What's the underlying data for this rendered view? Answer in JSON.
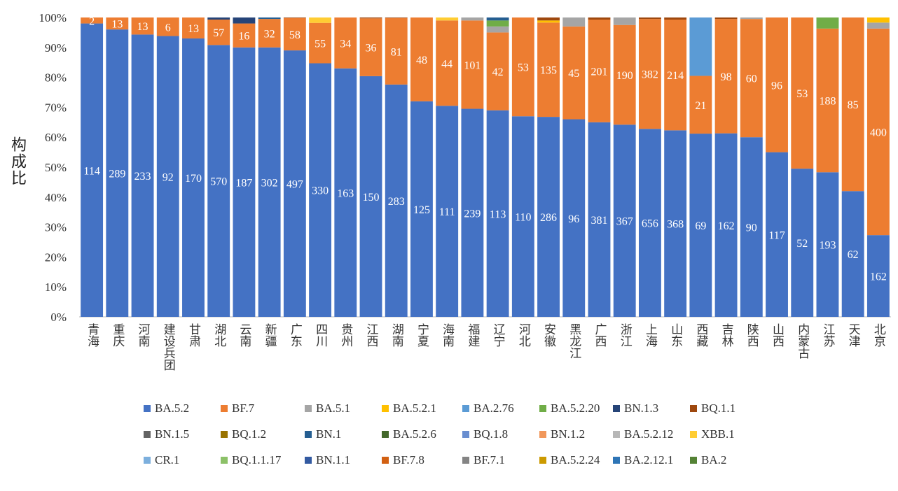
{
  "chart_data": {
    "type": "bar",
    "stacked": true,
    "normalized": true,
    "title": "",
    "xlabel": "",
    "ylabel": "构成比",
    "ylim": [
      0,
      100
    ],
    "yticks": [
      "0%",
      "10%",
      "20%",
      "30%",
      "40%",
      "50%",
      "60%",
      "70%",
      "80%",
      "90%",
      "100%"
    ],
    "grid": false,
    "legend_position": "bottom",
    "categories": [
      "青海",
      "重庆",
      "河南",
      "建设兵团",
      "甘肃",
      "湖北",
      "云南",
      "新疆",
      "广东",
      "四川",
      "贵州",
      "江西",
      "湖南",
      "宁夏",
      "海南",
      "福建",
      "辽宁",
      "河北",
      "安徽",
      "黑龙江",
      "广西",
      "浙江",
      "上海",
      "山东",
      "西藏",
      "吉林",
      "陕西",
      "山西",
      "内蒙古",
      "江苏",
      "天津",
      "北京"
    ],
    "legend": [
      {
        "name": "BA.5.2",
        "color": "#4472c4"
      },
      {
        "name": "BF.7",
        "color": "#ed7d31"
      },
      {
        "name": "BA.5.1",
        "color": "#a5a5a5"
      },
      {
        "name": "BA.5.2.1",
        "color": "#ffc000"
      },
      {
        "name": "BA.2.76",
        "color": "#5b9bd5"
      },
      {
        "name": "BA.5.2.20",
        "color": "#70ad47"
      },
      {
        "name": "BN.1.3",
        "color": "#264478"
      },
      {
        "name": "BQ.1.1",
        "color": "#9e480e"
      },
      {
        "name": "BN.1.5",
        "color": "#636363"
      },
      {
        "name": "BQ.1.2",
        "color": "#997300"
      },
      {
        "name": "BN.1",
        "color": "#255e91"
      },
      {
        "name": "BA.5.2.6",
        "color": "#43682b"
      },
      {
        "name": "BQ.1.8",
        "color": "#698ed0"
      },
      {
        "name": "BN.1.2",
        "color": "#f1975a"
      },
      {
        "name": "BA.5.2.12",
        "color": "#b7b7b7"
      },
      {
        "name": "XBB.1",
        "color": "#ffcd33"
      },
      {
        "name": "CR.1",
        "color": "#7cafdd"
      },
      {
        "name": "BQ.1.1.17",
        "color": "#8cc168"
      },
      {
        "name": "BN.1.1",
        "color": "#335aa1"
      },
      {
        "name": "BF.7.8",
        "color": "#d26012"
      },
      {
        "name": "BF.7.1",
        "color": "#848484"
      },
      {
        "name": "BA.5.2.24",
        "color": "#cc9a00"
      },
      {
        "name": "BA.2.12.1",
        "color": "#2e75b6"
      },
      {
        "name": "BA.2",
        "color": "#548235"
      }
    ],
    "series": [
      {
        "name": "BA.5.2",
        "counts": [
          114,
          289,
          233,
          92,
          170,
          570,
          187,
          302,
          497,
          330,
          163,
          150,
          283,
          125,
          111,
          239,
          113,
          110,
          286,
          96,
          381,
          367,
          656,
          368,
          69,
          162,
          90,
          117,
          52,
          193,
          62,
          162
        ],
        "percent": [
          98,
          96,
          94.3,
          93.8,
          93,
          90.8,
          90,
          90,
          89,
          84.7,
          83,
          80.4,
          77.6,
          72,
          70.5,
          69.5,
          69,
          67,
          66.8,
          66,
          65,
          64.2,
          62.8,
          62.3,
          61.2,
          61.3,
          60,
          55,
          49.5,
          48.3,
          42,
          27.3
        ]
      },
      {
        "name": "BF.7",
        "counts": [
          2,
          13,
          13,
          6,
          13,
          57,
          16,
          32,
          58,
          55,
          34,
          36,
          81,
          48,
          44,
          101,
          42,
          53,
          135,
          45,
          201,
          190,
          382,
          214,
          21,
          98,
          60,
          96,
          53,
          188,
          85,
          400
        ],
        "percent": [
          2,
          4,
          5.7,
          6.2,
          7,
          8.5,
          8,
          9.5,
          10.8,
          13.5,
          17,
          19.3,
          22.2,
          28,
          28.5,
          29.5,
          26,
          33,
          31.5,
          31,
          34.3,
          33.3,
          36.7,
          37,
          19.3,
          38.2,
          39.5,
          45,
          50.5,
          48,
          58,
          69
        ]
      },
      {
        "name": "BA.5.1",
        "percent": [
          0,
          0,
          0,
          0,
          0,
          0,
          0,
          0,
          0,
          0,
          0,
          0,
          0,
          0,
          0,
          1,
          2,
          0,
          0,
          3,
          0,
          2.5,
          0,
          0,
          0,
          0,
          0.5,
          0,
          0,
          0,
          0,
          2
        ]
      },
      {
        "name": "BA.5.2.1",
        "percent": [
          0,
          0,
          0,
          0,
          0,
          0,
          0,
          0,
          0,
          0,
          0,
          0,
          0,
          0,
          0,
          0,
          0,
          0,
          0.7,
          0,
          0,
          0,
          0,
          0,
          0,
          0,
          0,
          0,
          0,
          0,
          0,
          1.7
        ]
      },
      {
        "name": "BA.2.76",
        "percent": [
          0,
          0,
          0,
          0,
          0,
          0,
          0,
          0,
          0,
          0,
          0,
          0,
          0,
          0,
          0,
          0,
          0,
          0,
          0,
          0,
          0,
          0,
          0,
          0,
          19.5,
          0,
          0,
          0,
          0,
          0,
          0,
          0
        ]
      },
      {
        "name": "BA.5.2.20",
        "percent": [
          0,
          0,
          0,
          0,
          0,
          0,
          0,
          0,
          0,
          0,
          0,
          0,
          0,
          0,
          0,
          0,
          2,
          0,
          0,
          0,
          0,
          0,
          0,
          0,
          0,
          0,
          0,
          0,
          0,
          3.7,
          0,
          0
        ]
      },
      {
        "name": "BN.1.3",
        "percent": [
          0,
          0,
          0,
          0,
          0,
          0.7,
          2,
          0,
          0,
          0,
          0,
          0,
          0,
          0,
          0,
          0,
          0,
          0,
          0,
          0,
          0,
          0,
          0,
          0,
          0,
          0,
          0,
          0,
          0,
          0,
          0,
          0
        ]
      },
      {
        "name": "BQ.1.1",
        "percent": [
          0,
          0,
          0,
          0,
          0,
          0,
          0,
          0,
          0.2,
          0,
          0,
          0.3,
          0.2,
          0,
          0,
          0,
          0,
          0,
          1,
          0,
          0.7,
          0,
          0.5,
          0.7,
          0,
          0.5,
          0,
          0,
          0,
          0,
          0,
          0
        ]
      },
      {
        "name": "BN.1",
        "percent": [
          0,
          0,
          0,
          0,
          0,
          0,
          0,
          0.5,
          0,
          0,
          0,
          0,
          0,
          0,
          0,
          0,
          1,
          0,
          0,
          0,
          0,
          0,
          0,
          0,
          0,
          0,
          0,
          0,
          0,
          0,
          0,
          0
        ]
      },
      {
        "name": "XBB.1",
        "percent": [
          0,
          0,
          0,
          0,
          0,
          0,
          0,
          0,
          0,
          1.8,
          0,
          0,
          0,
          0,
          1,
          0,
          0,
          0,
          0,
          0,
          0,
          0,
          0,
          0,
          0,
          0,
          0,
          0,
          0,
          0,
          0,
          0
        ]
      }
    ]
  }
}
